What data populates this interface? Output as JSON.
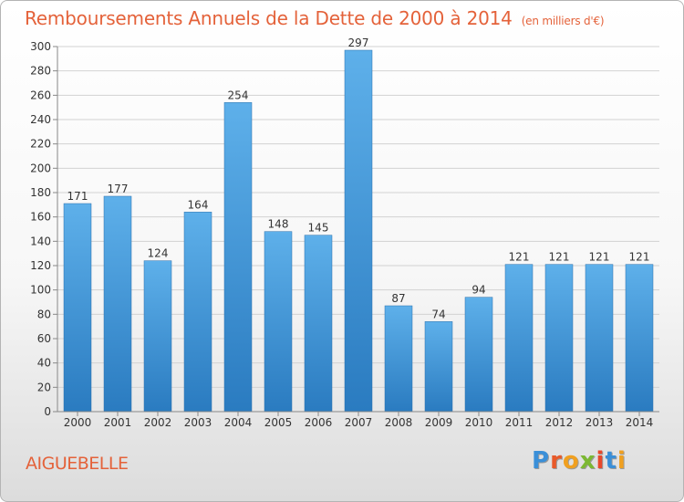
{
  "page": {
    "title": "Remboursements Annuels de la Dette de 2000 à 2014",
    "unit": "(en milliers d'€)",
    "place": "AIGUEBELLE",
    "logo": "Proxiti"
  },
  "colors": {
    "title": "#e4623a",
    "bar_light": "#5eb0ea",
    "bar_dark": "#2a7bc0",
    "grid": "#d2d2d2",
    "axis_text": "#333333",
    "logo_letters": [
      "#3a8fd8",
      "#e85a2a",
      "#f0a020",
      "#7cb832",
      "#e8482c",
      "#3a8fd8",
      "#f0a020"
    ]
  },
  "chart_data": {
    "type": "bar",
    "title": "Remboursements Annuels de la Dette de 2000 à 2014",
    "ylabel": "en milliers d'€",
    "xlabel": "",
    "categories": [
      "2000",
      "2001",
      "2002",
      "2003",
      "2004",
      "2005",
      "2006",
      "2007",
      "2008",
      "2009",
      "2010",
      "2011",
      "2012",
      "2013",
      "2014"
    ],
    "values": [
      171,
      177,
      124,
      164,
      254,
      148,
      145,
      297,
      87,
      74,
      94,
      121,
      121,
      121,
      121
    ],
    "ylim": [
      0,
      300
    ],
    "yticks": [
      0,
      20,
      40,
      60,
      80,
      100,
      120,
      140,
      160,
      180,
      200,
      220,
      240,
      260,
      280,
      300
    ],
    "grid": true,
    "data_labels": true
  }
}
